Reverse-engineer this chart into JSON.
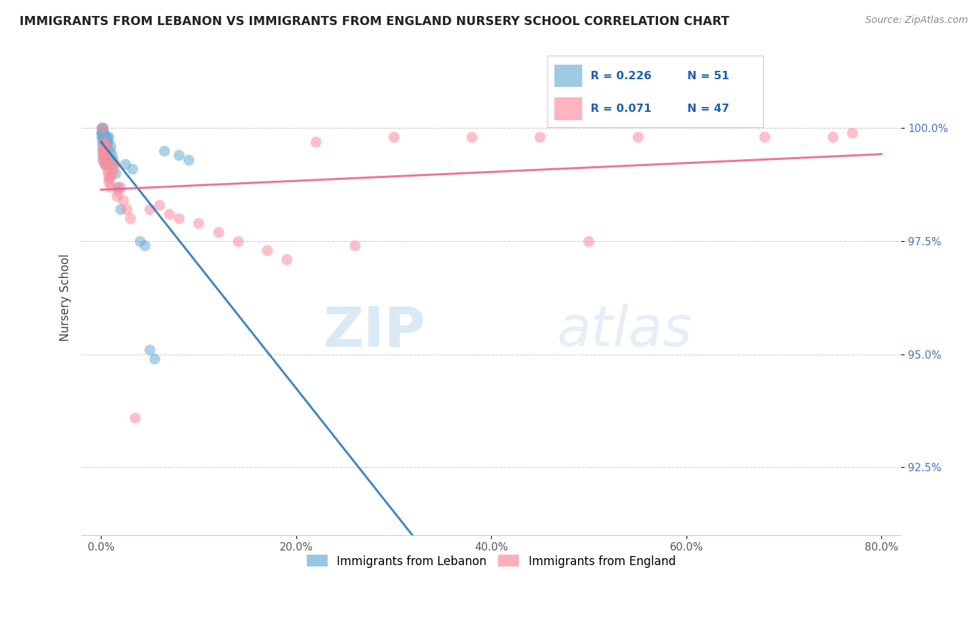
{
  "title": "IMMIGRANTS FROM LEBANON VS IMMIGRANTS FROM ENGLAND NURSERY SCHOOL CORRELATION CHART",
  "source_text": "Source: ZipAtlas.com",
  "ylabel": "Nursery School",
  "xlim": [
    -2,
    82
  ],
  "ylim": [
    91.0,
    101.5
  ],
  "yticks": [
    92.5,
    95.0,
    97.5,
    100.0
  ],
  "xticks": [
    0.0,
    20.0,
    40.0,
    60.0,
    80.0
  ],
  "xtick_labels": [
    "0.0%",
    "20.0%",
    "40.0%",
    "60.0%",
    "80.0%"
  ],
  "ytick_labels": [
    "92.5%",
    "95.0%",
    "97.5%",
    "100.0%"
  ],
  "lebanon_color": "#6baed6",
  "england_color": "#fc8d9b",
  "lb_line_color": "#2171b5",
  "en_line_color": "#e85d8a",
  "lebanon_R": 0.226,
  "lebanon_N": 51,
  "england_R": 0.071,
  "england_N": 47,
  "lebanon_x": [
    0.05,
    0.08,
    0.1,
    0.12,
    0.15,
    0.18,
    0.2,
    0.22,
    0.25,
    0.28,
    0.3,
    0.33,
    0.35,
    0.38,
    0.4,
    0.42,
    0.45,
    0.48,
    0.5,
    0.52,
    0.55,
    0.58,
    0.6,
    0.65,
    0.7,
    0.8,
    0.9,
    1.0,
    1.1,
    1.2,
    1.3,
    1.5,
    1.7,
    2.0,
    2.5,
    3.2,
    4.0,
    4.5,
    5.0,
    5.5,
    6.5,
    8.0,
    9.0,
    0.07,
    0.09,
    0.11,
    0.14,
    0.17,
    0.21,
    0.26,
    0.32
  ],
  "lebanon_y": [
    99.9,
    100.0,
    99.9,
    100.0,
    99.8,
    100.0,
    99.9,
    99.9,
    99.8,
    99.9,
    99.8,
    99.7,
    99.8,
    99.7,
    99.8,
    99.7,
    99.8,
    99.6,
    99.7,
    99.6,
    99.7,
    99.6,
    99.7,
    99.8,
    99.7,
    99.8,
    99.5,
    99.6,
    99.4,
    99.3,
    99.2,
    99.0,
    98.7,
    98.2,
    99.2,
    99.1,
    97.5,
    97.4,
    95.1,
    94.9,
    99.5,
    99.4,
    99.3,
    99.9,
    99.8,
    99.7,
    99.6,
    99.5,
    99.4,
    99.3,
    99.2
  ],
  "england_x": [
    0.1,
    0.15,
    0.2,
    0.25,
    0.3,
    0.35,
    0.4,
    0.45,
    0.5,
    0.55,
    0.6,
    0.65,
    0.7,
    0.75,
    0.8,
    0.9,
    1.0,
    1.1,
    1.2,
    1.4,
    1.6,
    1.8,
    2.0,
    2.3,
    2.6,
    3.0,
    3.5,
    5.0,
    6.0,
    7.0,
    8.0,
    10.0,
    12.0,
    14.0,
    17.0,
    19.0,
    22.0,
    26.0,
    30.0,
    38.0,
    45.0,
    55.0,
    68.0,
    75.0,
    77.0,
    50.0,
    0.12
  ],
  "england_y": [
    99.5,
    99.3,
    99.4,
    99.6,
    99.7,
    99.5,
    99.3,
    99.2,
    99.6,
    99.4,
    99.2,
    99.1,
    99.0,
    98.9,
    98.8,
    98.9,
    98.7,
    99.0,
    99.1,
    99.2,
    98.5,
    98.6,
    98.7,
    98.4,
    98.2,
    98.0,
    93.6,
    98.2,
    98.3,
    98.1,
    98.0,
    97.9,
    97.7,
    97.5,
    97.3,
    97.1,
    99.7,
    97.4,
    99.8,
    99.8,
    99.8,
    99.8,
    99.8,
    99.8,
    99.9,
    97.5,
    100.0
  ]
}
